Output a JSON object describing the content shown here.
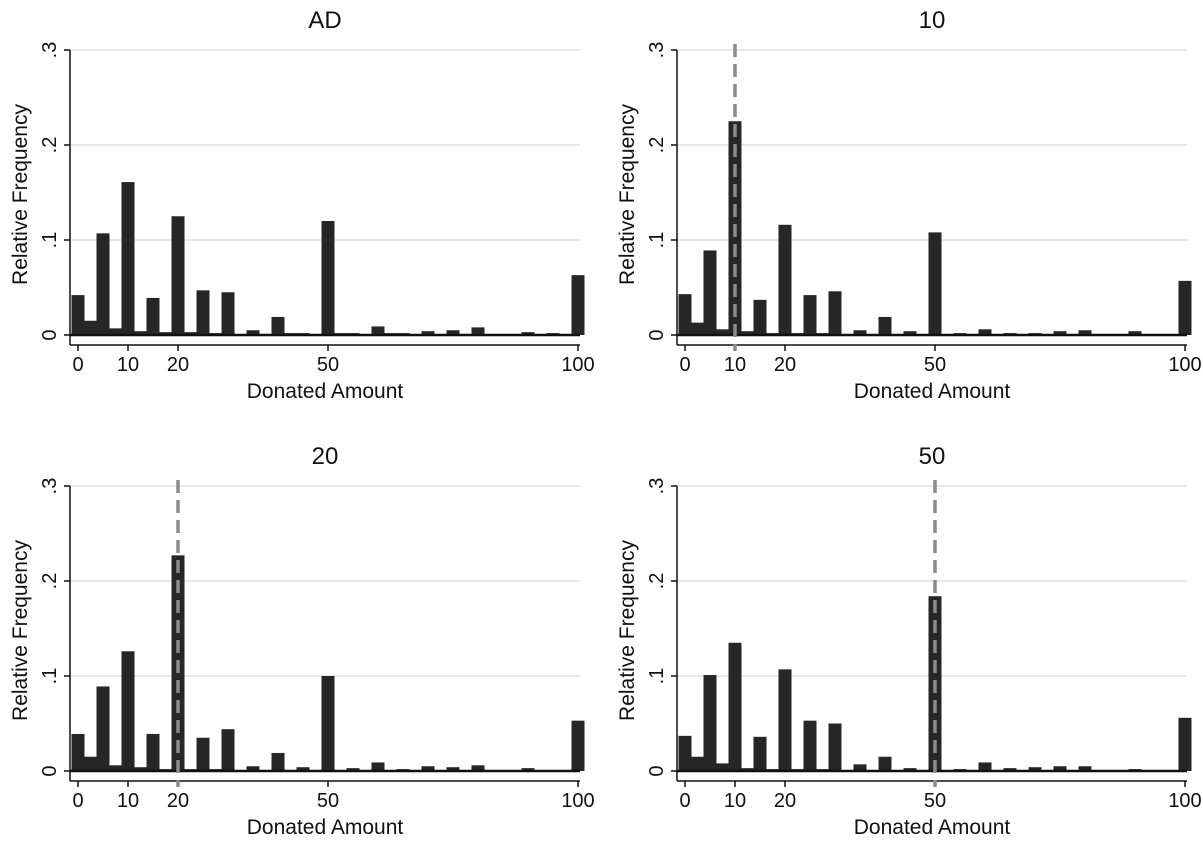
{
  "chart_data": [
    {
      "type": "bar",
      "title": "AD",
      "xlabel": "Donated Amount",
      "ylabel": "Relative Frequency",
      "ylim": [
        0,
        0.3
      ],
      "yticks": [
        {
          "value": 0,
          "label": "0"
        },
        {
          "value": 0.1,
          "label": ".1"
        },
        {
          "value": 0.2,
          "label": ".2"
        },
        {
          "value": 0.3,
          "label": ".3"
        }
      ],
      "xticks": [
        0,
        10,
        20,
        50,
        100
      ],
      "grid": true,
      "reference_line": null,
      "x": [
        0,
        2.5,
        5,
        7.5,
        10,
        12.5,
        15,
        17.5,
        20,
        22.5,
        25,
        27.5,
        30,
        32.5,
        35,
        37.5,
        40,
        42.5,
        45,
        47.5,
        50,
        52.5,
        55,
        57.5,
        60,
        62.5,
        65,
        67.5,
        70,
        72.5,
        75,
        77.5,
        80,
        82.5,
        85,
        87.5,
        90,
        92.5,
        95,
        97.5,
        100
      ],
      "values": [
        0.042,
        0.015,
        0.107,
        0.007,
        0.161,
        0.004,
        0.039,
        0.003,
        0.125,
        0.003,
        0.047,
        0.002,
        0.045,
        0.001,
        0.005,
        0.001,
        0.019,
        0.002,
        0.002,
        0.001,
        0.12,
        0.002,
        0.002,
        0.001,
        0.009,
        0.002,
        0.002,
        0.001,
        0.004,
        0.001,
        0.005,
        0.001,
        0.008,
        0.001,
        0.001,
        0.001,
        0.003,
        0.001,
        0.002,
        0.001,
        0.063
      ]
    },
    {
      "type": "bar",
      "title": "10",
      "xlabel": "Donated Amount",
      "ylabel": "Relative Frequency",
      "ylim": [
        0,
        0.3
      ],
      "yticks": [
        {
          "value": 0,
          "label": "0"
        },
        {
          "value": 0.1,
          "label": ".1"
        },
        {
          "value": 0.2,
          "label": ".2"
        },
        {
          "value": 0.3,
          "label": ".3"
        }
      ],
      "xticks": [
        0,
        10,
        20,
        50,
        100
      ],
      "grid": true,
      "reference_line": 10,
      "x": [
        0,
        2.5,
        5,
        7.5,
        10,
        12.5,
        15,
        17.5,
        20,
        22.5,
        25,
        27.5,
        30,
        32.5,
        35,
        37.5,
        40,
        42.5,
        45,
        47.5,
        50,
        52.5,
        55,
        57.5,
        60,
        62.5,
        65,
        67.5,
        70,
        72.5,
        75,
        77.5,
        80,
        82.5,
        85,
        87.5,
        90,
        92.5,
        95,
        97.5,
        100
      ],
      "values": [
        0.043,
        0.013,
        0.089,
        0.006,
        0.225,
        0.004,
        0.037,
        0.002,
        0.116,
        0.002,
        0.042,
        0.002,
        0.046,
        0.001,
        0.005,
        0.001,
        0.019,
        0.001,
        0.004,
        0.001,
        0.108,
        0.001,
        0.002,
        0.001,
        0.006,
        0.001,
        0.002,
        0.001,
        0.002,
        0.001,
        0.004,
        0.001,
        0.005,
        0.001,
        0.001,
        0.001,
        0.004,
        0.001,
        0.001,
        0.001,
        0.057
      ]
    },
    {
      "type": "bar",
      "title": "20",
      "xlabel": "Donated Amount",
      "ylabel": "Relative Frequency",
      "ylim": [
        0,
        0.3
      ],
      "yticks": [
        {
          "value": 0,
          "label": "0"
        },
        {
          "value": 0.1,
          "label": ".1"
        },
        {
          "value": 0.2,
          "label": ".2"
        },
        {
          "value": 0.3,
          "label": ".3"
        }
      ],
      "xticks": [
        0,
        10,
        20,
        50,
        100
      ],
      "grid": true,
      "reference_line": 20,
      "x": [
        0,
        2.5,
        5,
        7.5,
        10,
        12.5,
        15,
        17.5,
        20,
        22.5,
        25,
        27.5,
        30,
        32.5,
        35,
        37.5,
        40,
        42.5,
        45,
        47.5,
        50,
        52.5,
        55,
        57.5,
        60,
        62.5,
        65,
        67.5,
        70,
        72.5,
        75,
        77.5,
        80,
        82.5,
        85,
        87.5,
        90,
        92.5,
        95,
        97.5,
        100
      ],
      "values": [
        0.039,
        0.015,
        0.089,
        0.006,
        0.126,
        0.004,
        0.039,
        0.002,
        0.227,
        0.002,
        0.035,
        0.002,
        0.044,
        0.001,
        0.005,
        0.001,
        0.019,
        0.001,
        0.004,
        0.001,
        0.1,
        0.001,
        0.003,
        0.001,
        0.009,
        0.001,
        0.002,
        0.001,
        0.005,
        0.001,
        0.004,
        0.001,
        0.006,
        0.001,
        0.001,
        0.001,
        0.003,
        0.001,
        0.001,
        0.001,
        0.053
      ]
    },
    {
      "type": "bar",
      "title": "50",
      "xlabel": "Donated Amount",
      "ylabel": "Relative Frequency",
      "ylim": [
        0,
        0.3
      ],
      "yticks": [
        {
          "value": 0,
          "label": "0"
        },
        {
          "value": 0.1,
          "label": ".1"
        },
        {
          "value": 0.2,
          "label": ".2"
        },
        {
          "value": 0.3,
          "label": ".3"
        }
      ],
      "xticks": [
        0,
        10,
        20,
        50,
        100
      ],
      "grid": true,
      "reference_line": 50,
      "x": [
        0,
        2.5,
        5,
        7.5,
        10,
        12.5,
        15,
        17.5,
        20,
        22.5,
        25,
        27.5,
        30,
        32.5,
        35,
        37.5,
        40,
        42.5,
        45,
        47.5,
        50,
        52.5,
        55,
        57.5,
        60,
        62.5,
        65,
        67.5,
        70,
        72.5,
        75,
        77.5,
        80,
        82.5,
        85,
        87.5,
        90,
        92.5,
        95,
        97.5,
        100
      ],
      "values": [
        0.037,
        0.015,
        0.101,
        0.008,
        0.135,
        0.003,
        0.036,
        0.002,
        0.107,
        0.002,
        0.053,
        0.002,
        0.05,
        0.001,
        0.007,
        0.001,
        0.015,
        0.001,
        0.003,
        0.001,
        0.184,
        0.001,
        0.002,
        0.001,
        0.009,
        0.001,
        0.003,
        0.001,
        0.004,
        0.001,
        0.005,
        0.001,
        0.005,
        0.001,
        0.001,
        0.001,
        0.002,
        0.001,
        0.001,
        0.001,
        0.056
      ]
    }
  ],
  "colors": {
    "bar": "#262626",
    "axis": "#111111",
    "grid": "#d9d9d9",
    "reference_line": "#8c8c8c"
  }
}
